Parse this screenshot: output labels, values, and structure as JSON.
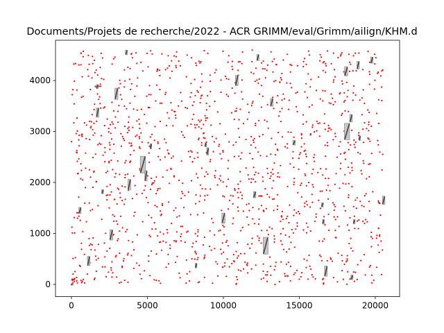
{
  "chart_data": {
    "type": "scatter",
    "title": "Documents/Projets de recherche/2022 - ACR GRIMM/eval/Grimm/ailign/KHM.d",
    "xlabel": "",
    "ylabel": "",
    "xlim": [
      -1050,
      21600
    ],
    "ylim": [
      -240,
      4790
    ],
    "xticks": [
      0,
      5000,
      10000,
      15000,
      20000
    ],
    "yticks": [
      0,
      1000,
      2000,
      3000,
      4000
    ],
    "xtick_labels": [
      "0",
      "5000",
      "10000",
      "15000",
      "20000"
    ],
    "ytick_labels": [
      "0",
      "1000",
      "2000",
      "3000",
      "4000"
    ],
    "grid": false,
    "colors": {
      "points": "#ff0000",
      "clusters": "#404040",
      "cluster_outline": "#888888"
    },
    "point_cloud": {
      "count": 1400,
      "x_range": [
        0,
        20500
      ],
      "y_range": [
        0,
        4600
      ],
      "distribution": "uniform"
    },
    "aligned_clusters": [
      {
        "x": 0,
        "y": 0,
        "w": 60,
        "h": 30
      },
      {
        "x": 560,
        "y": 1450,
        "w": 150,
        "h": 120
      },
      {
        "x": 1130,
        "y": 460,
        "w": 160,
        "h": 180
      },
      {
        "x": 1720,
        "y": 3370,
        "w": 160,
        "h": 180
      },
      {
        "x": 1700,
        "y": 3880,
        "w": 120,
        "h": 80
      },
      {
        "x": 2050,
        "y": 1820,
        "w": 120,
        "h": 80
      },
      {
        "x": 2620,
        "y": 970,
        "w": 190,
        "h": 200
      },
      {
        "x": 2960,
        "y": 3740,
        "w": 200,
        "h": 220
      },
      {
        "x": 3620,
        "y": 4550,
        "w": 130,
        "h": 90
      },
      {
        "x": 3810,
        "y": 1960,
        "w": 180,
        "h": 200
      },
      {
        "x": 4700,
        "y": 2350,
        "w": 340,
        "h": 330
      },
      {
        "x": 4900,
        "y": 2130,
        "w": 150,
        "h": 200
      },
      {
        "x": 5230,
        "y": 2710,
        "w": 110,
        "h": 100
      },
      {
        "x": 8200,
        "y": 370,
        "w": 110,
        "h": 90
      },
      {
        "x": 8830,
        "y": 2740,
        "w": 110,
        "h": 80
      },
      {
        "x": 8970,
        "y": 2610,
        "w": 130,
        "h": 140
      },
      {
        "x": 10000,
        "y": 1300,
        "w": 200,
        "h": 200
      },
      {
        "x": 10880,
        "y": 4000,
        "w": 180,
        "h": 200
      },
      {
        "x": 12060,
        "y": 1760,
        "w": 160,
        "h": 120
      },
      {
        "x": 12270,
        "y": 4450,
        "w": 140,
        "h": 120
      },
      {
        "x": 12780,
        "y": 760,
        "w": 320,
        "h": 330
      },
      {
        "x": 13180,
        "y": 3570,
        "w": 170,
        "h": 150
      },
      {
        "x": 14650,
        "y": 2780,
        "w": 160,
        "h": 90
      },
      {
        "x": 16520,
        "y": 1560,
        "w": 120,
        "h": 80
      },
      {
        "x": 16580,
        "y": 1230,
        "w": 120,
        "h": 90
      },
      {
        "x": 16750,
        "y": 260,
        "w": 180,
        "h": 200
      },
      {
        "x": 18080,
        "y": 4180,
        "w": 200,
        "h": 180
      },
      {
        "x": 18140,
        "y": 3000,
        "w": 340,
        "h": 320
      },
      {
        "x": 18400,
        "y": 3260,
        "w": 170,
        "h": 150
      },
      {
        "x": 18460,
        "y": 140,
        "w": 130,
        "h": 90
      },
      {
        "x": 18610,
        "y": 1230,
        "w": 120,
        "h": 80
      },
      {
        "x": 18870,
        "y": 4300,
        "w": 150,
        "h": 150
      },
      {
        "x": 18970,
        "y": 2870,
        "w": 120,
        "h": 90
      },
      {
        "x": 19770,
        "y": 4400,
        "w": 150,
        "h": 120
      },
      {
        "x": 20550,
        "y": 1650,
        "w": 160,
        "h": 160
      }
    ]
  }
}
